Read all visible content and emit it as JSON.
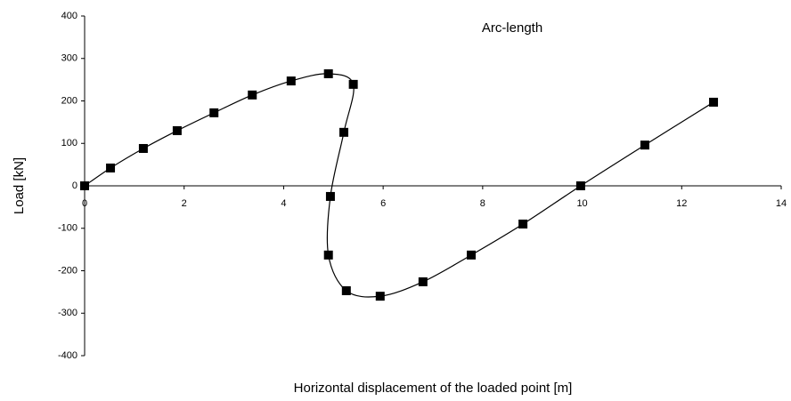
{
  "chart_data": {
    "type": "scatter",
    "annotation": "Arc-length",
    "xlabel": "Horizontal displacement  of the loaded point [m]",
    "ylabel": "Load [kN]",
    "x": [
      0,
      0.52,
      1.18,
      1.86,
      2.6,
      3.37,
      4.15,
      4.9,
      5.4,
      5.21,
      4.94,
      4.9,
      5.26,
      5.94,
      6.8,
      7.77,
      8.81,
      9.97,
      11.26,
      12.64
    ],
    "values": [
      0,
      42,
      88,
      130,
      172,
      214,
      247,
      264,
      239,
      126,
      -25,
      -163,
      -247,
      -260,
      -226,
      -163,
      -90,
      0,
      96,
      197
    ],
    "color": "#000000",
    "smooth_line": true,
    "xlim": [
      0,
      14
    ],
    "xticks": [
      0,
      2,
      4,
      6,
      8,
      10,
      12,
      14
    ],
    "ylim": [
      -400,
      400
    ],
    "yticks": [
      -400,
      -300,
      -200,
      -100,
      0,
      100,
      200,
      300,
      400
    ],
    "grid": false
  }
}
